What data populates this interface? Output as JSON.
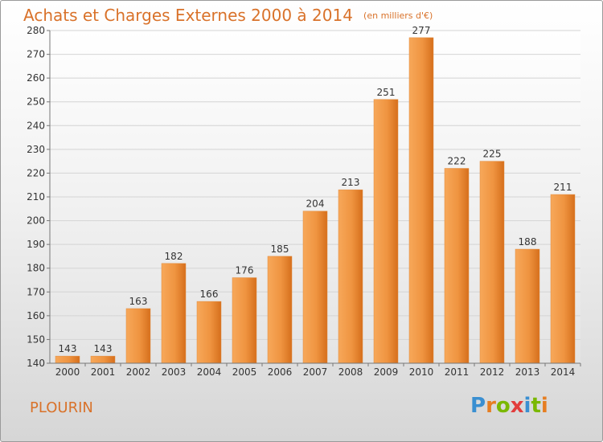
{
  "title": "Achats et Charges Externes 2000 à 2014",
  "subtitle": "(en milliers d'€)",
  "place_name": "PLOURIN",
  "logo": {
    "text": "Proxiti",
    "letter_colors": [
      "#3a8fd1",
      "#e67e22",
      "#7ab800",
      "#e23c3c",
      "#3a8fd1",
      "#7ab800",
      "#e67e22"
    ]
  },
  "colors": {
    "bar_light": "#f7a85a",
    "bar_dark": "#d66f1c",
    "accent_text": "#d9722a"
  },
  "chart_data": {
    "type": "bar",
    "categories": [
      "2000",
      "2001",
      "2002",
      "2003",
      "2004",
      "2005",
      "2006",
      "2007",
      "2008",
      "2009",
      "2010",
      "2011",
      "2012",
      "2013",
      "2014"
    ],
    "values": [
      143,
      143,
      163,
      182,
      166,
      176,
      185,
      204,
      213,
      251,
      277,
      222,
      225,
      188,
      211
    ],
    "title": "Achats et Charges Externes 2000 à 2014",
    "subtitle": "(en milliers d'€)",
    "xlabel": "",
    "ylabel": "",
    "ylim": [
      140,
      280
    ],
    "yticks": [
      140,
      150,
      160,
      170,
      180,
      190,
      200,
      210,
      220,
      230,
      240,
      250,
      260,
      270,
      280
    ],
    "grid": true,
    "legend": "none"
  }
}
